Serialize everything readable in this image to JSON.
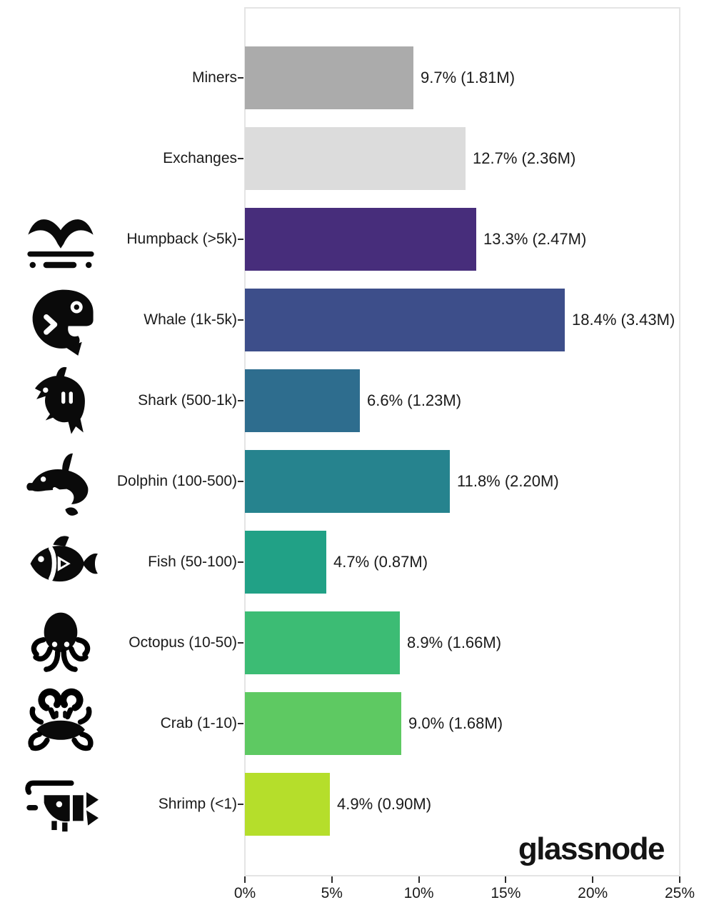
{
  "branding": {
    "logo_text": "glassnode"
  },
  "chart_data": {
    "type": "bar",
    "orientation": "horizontal",
    "title": "",
    "categories": [
      "Miners",
      "Exchanges",
      "Humpback (>5k)",
      "Whale (1k-5k)",
      "Shark (500-1k)",
      "Dolphin (100-500)",
      "Fish (50-100)",
      "Octopus (10-50)",
      "Crab (1-10)",
      "Shrimp (<1)"
    ],
    "values_percent": [
      9.7,
      12.7,
      13.3,
      18.4,
      6.6,
      11.8,
      4.7,
      8.9,
      9.0,
      4.9
    ],
    "value_labels": [
      "9.7% (1.81M)",
      "12.7% (2.36M)",
      "13.3% (2.47M)",
      "18.4% (3.43M)",
      "6.6% (1.23M)",
      "11.8% (2.20M)",
      "4.7% (0.87M)",
      "8.9% (1.66M)",
      "9.0% (1.68M)",
      "4.9% (0.90M)"
    ],
    "bar_colors": [
      "#ababab",
      "#dcdcdc",
      "#472d7b",
      "#3d4e8a",
      "#2e6d8e",
      "#26838e",
      "#21a186",
      "#3cbc74",
      "#5ec962",
      "#b5de2b"
    ],
    "category_icons": [
      "none",
      "none",
      "whale-tail",
      "whale",
      "shark",
      "dolphin",
      "fish",
      "octopus",
      "crab",
      "shrimp"
    ],
    "x_axis": {
      "min": 0,
      "max": 25,
      "unit": "%",
      "tick_values": [
        0,
        5,
        10,
        15,
        20,
        25
      ],
      "tick_labels": [
        "0%",
        "5%",
        "10%",
        "15%",
        "20%",
        "25%"
      ]
    },
    "grid": "off",
    "legend": "none",
    "icon_color": "#0a0a0a",
    "axis_border_color": "#e4e4e4"
  }
}
